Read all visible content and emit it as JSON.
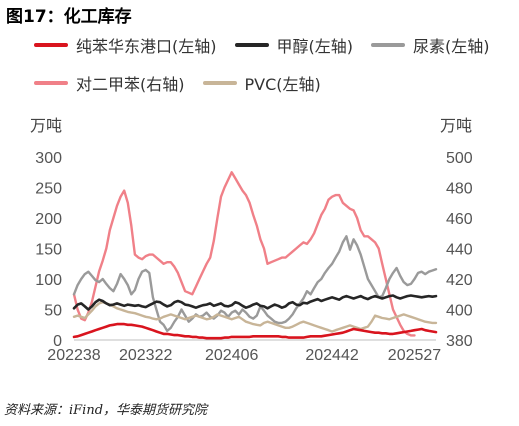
{
  "figure": {
    "title": "图17：化工库存",
    "source": "资料来源：iFind，华泰期货研究院"
  },
  "chart_data": {
    "type": "line",
    "left_unit": "万吨",
    "right_unit": "万吨",
    "left_ylim": [
      0,
      300
    ],
    "right_ylim": [
      380,
      500
    ],
    "left_ticks": [
      "0",
      "50",
      "100",
      "150",
      "200",
      "250",
      "300"
    ],
    "right_ticks": [
      "380",
      "400",
      "420",
      "440",
      "460",
      "480",
      "500"
    ],
    "x_tick_labels": [
      "202238",
      "202322",
      "202406",
      "202442",
      "202527"
    ],
    "x_tick_index": [
      0,
      20,
      44,
      72,
      95
    ],
    "grid": false,
    "legend_position": "top",
    "series": [
      {
        "name": "纯苯华东港口(左轴)",
        "axis": "left",
        "color": "#d9141e",
        "values": [
          5,
          6,
          8,
          10,
          12,
          14,
          16,
          18,
          20,
          22,
          24,
          25,
          26,
          26,
          26,
          25,
          25,
          24,
          23,
          22,
          20,
          18,
          16,
          14,
          12,
          10,
          10,
          9,
          8,
          8,
          7,
          6,
          6,
          5,
          5,
          4,
          4,
          3,
          3,
          3,
          3,
          3,
          4,
          4,
          5,
          5,
          5,
          5,
          5,
          5,
          6,
          6,
          6,
          6,
          6,
          6,
          6,
          6,
          5,
          5,
          4,
          4,
          4,
          4,
          4,
          5,
          6,
          6,
          6,
          6,
          7,
          8,
          9,
          10,
          11,
          12,
          14,
          16,
          18,
          17,
          16,
          15,
          14,
          13,
          12,
          12,
          11,
          11,
          10,
          10,
          11,
          12,
          13,
          14,
          15,
          16,
          17,
          18,
          16,
          15,
          14,
          13
        ]
      },
      {
        "name": "甲醇(左轴)",
        "axis": "left",
        "color": "#262626",
        "values": [
          52,
          58,
          60,
          55,
          50,
          55,
          62,
          66,
          64,
          60,
          57,
          58,
          60,
          58,
          56,
          58,
          57,
          56,
          57,
          55,
          54,
          57,
          60,
          63,
          62,
          58,
          55,
          57,
          62,
          64,
          62,
          58,
          57,
          55,
          53,
          55,
          57,
          58,
          60,
          56,
          58,
          60,
          56,
          55,
          57,
          62,
          60,
          56,
          53,
          55,
          58,
          60,
          56,
          55,
          52,
          55,
          58,
          56,
          53,
          55,
          60,
          62,
          58,
          57,
          61,
          60,
          63,
          65,
          67,
          64,
          66,
          68,
          70,
          68,
          66,
          70,
          72,
          70,
          68,
          70,
          72,
          69,
          67,
          70,
          72,
          70,
          68,
          70,
          72,
          73,
          70,
          68,
          70,
          72,
          73,
          72,
          71,
          70,
          71,
          72,
          71,
          72
        ]
      },
      {
        "name": "尿素(左轴)",
        "axis": "left",
        "color": "#9a9a9a",
        "values": [
          75,
          90,
          100,
          108,
          112,
          105,
          98,
          95,
          100,
          92,
          85,
          80,
          92,
          108,
          100,
          90,
          75,
          82,
          100,
          112,
          115,
          110,
          70,
          50,
          30,
          25,
          15,
          20,
          30,
          38,
          50,
          40,
          30,
          35,
          42,
          38,
          40,
          45,
          38,
          35,
          40,
          48,
          45,
          38,
          45,
          48,
          42,
          50,
          45,
          38,
          35,
          40,
          55,
          48,
          40,
          35,
          30,
          28,
          28,
          30,
          35,
          42,
          52,
          60,
          68,
          80,
          75,
          85,
          95,
          100,
          110,
          118,
          125,
          135,
          145,
          160,
          170,
          148,
          165,
          155,
          140,
          120,
          100,
          90,
          80,
          70,
          72,
          85,
          100,
          110,
          118,
          105,
          95,
          90,
          92,
          100,
          110,
          112,
          108,
          112,
          114,
          116
        ]
      },
      {
        "name": "对二甲苯(右轴)",
        "axis": "right",
        "color": "#f08088",
        "values": [
          410,
          400,
          394,
          393,
          398,
          405,
          415,
          425,
          432,
          440,
          452,
          460,
          468,
          474,
          478,
          470,
          455,
          436,
          434,
          433,
          435,
          436,
          436,
          434,
          432,
          430,
          431,
          431,
          428,
          424,
          418,
          412,
          411,
          410,
          415,
          420,
          425,
          430,
          434,
          445,
          460,
          474,
          480,
          485,
          490,
          486,
          482,
          478,
          475,
          470,
          462,
          455,
          446,
          440,
          430,
          431,
          432,
          433,
          434,
          434,
          436,
          438,
          440,
          442,
          444,
          443,
          446,
          450,
          456,
          462,
          466,
          472,
          474,
          475,
          475,
          470,
          468,
          466,
          465,
          460,
          452,
          448,
          448,
          446,
          444,
          440,
          430,
          420,
          410,
          400,
          395,
          390,
          386,
          384,
          383,
          383
        ]
      },
      {
        "name": "PVC(左轴)",
        "axis": "left",
        "color": "#c8b598",
        "values": [
          38,
          40,
          38,
          36,
          42,
          48,
          55,
          60,
          62,
          60,
          58,
          55,
          52,
          50,
          48,
          46,
          45,
          44,
          42,
          40,
          38,
          37,
          35,
          34,
          35,
          38,
          40,
          42,
          40,
          38,
          36,
          34,
          36,
          38,
          40,
          38,
          36,
          34,
          35,
          38,
          42,
          40,
          38,
          36,
          34,
          36,
          38,
          34,
          30,
          28,
          26,
          25,
          24,
          28,
          30,
          28,
          26,
          24,
          22,
          20,
          20,
          22,
          25,
          28,
          30,
          28,
          26,
          24,
          22,
          20,
          18,
          16,
          14,
          16,
          18,
          20,
          22,
          24,
          22,
          20,
          18,
          20,
          22,
          30,
          40,
          38,
          36,
          35,
          34,
          36,
          38,
          40,
          42,
          40,
          38,
          36,
          34,
          32,
          30,
          29,
          28,
          28
        ]
      }
    ]
  }
}
